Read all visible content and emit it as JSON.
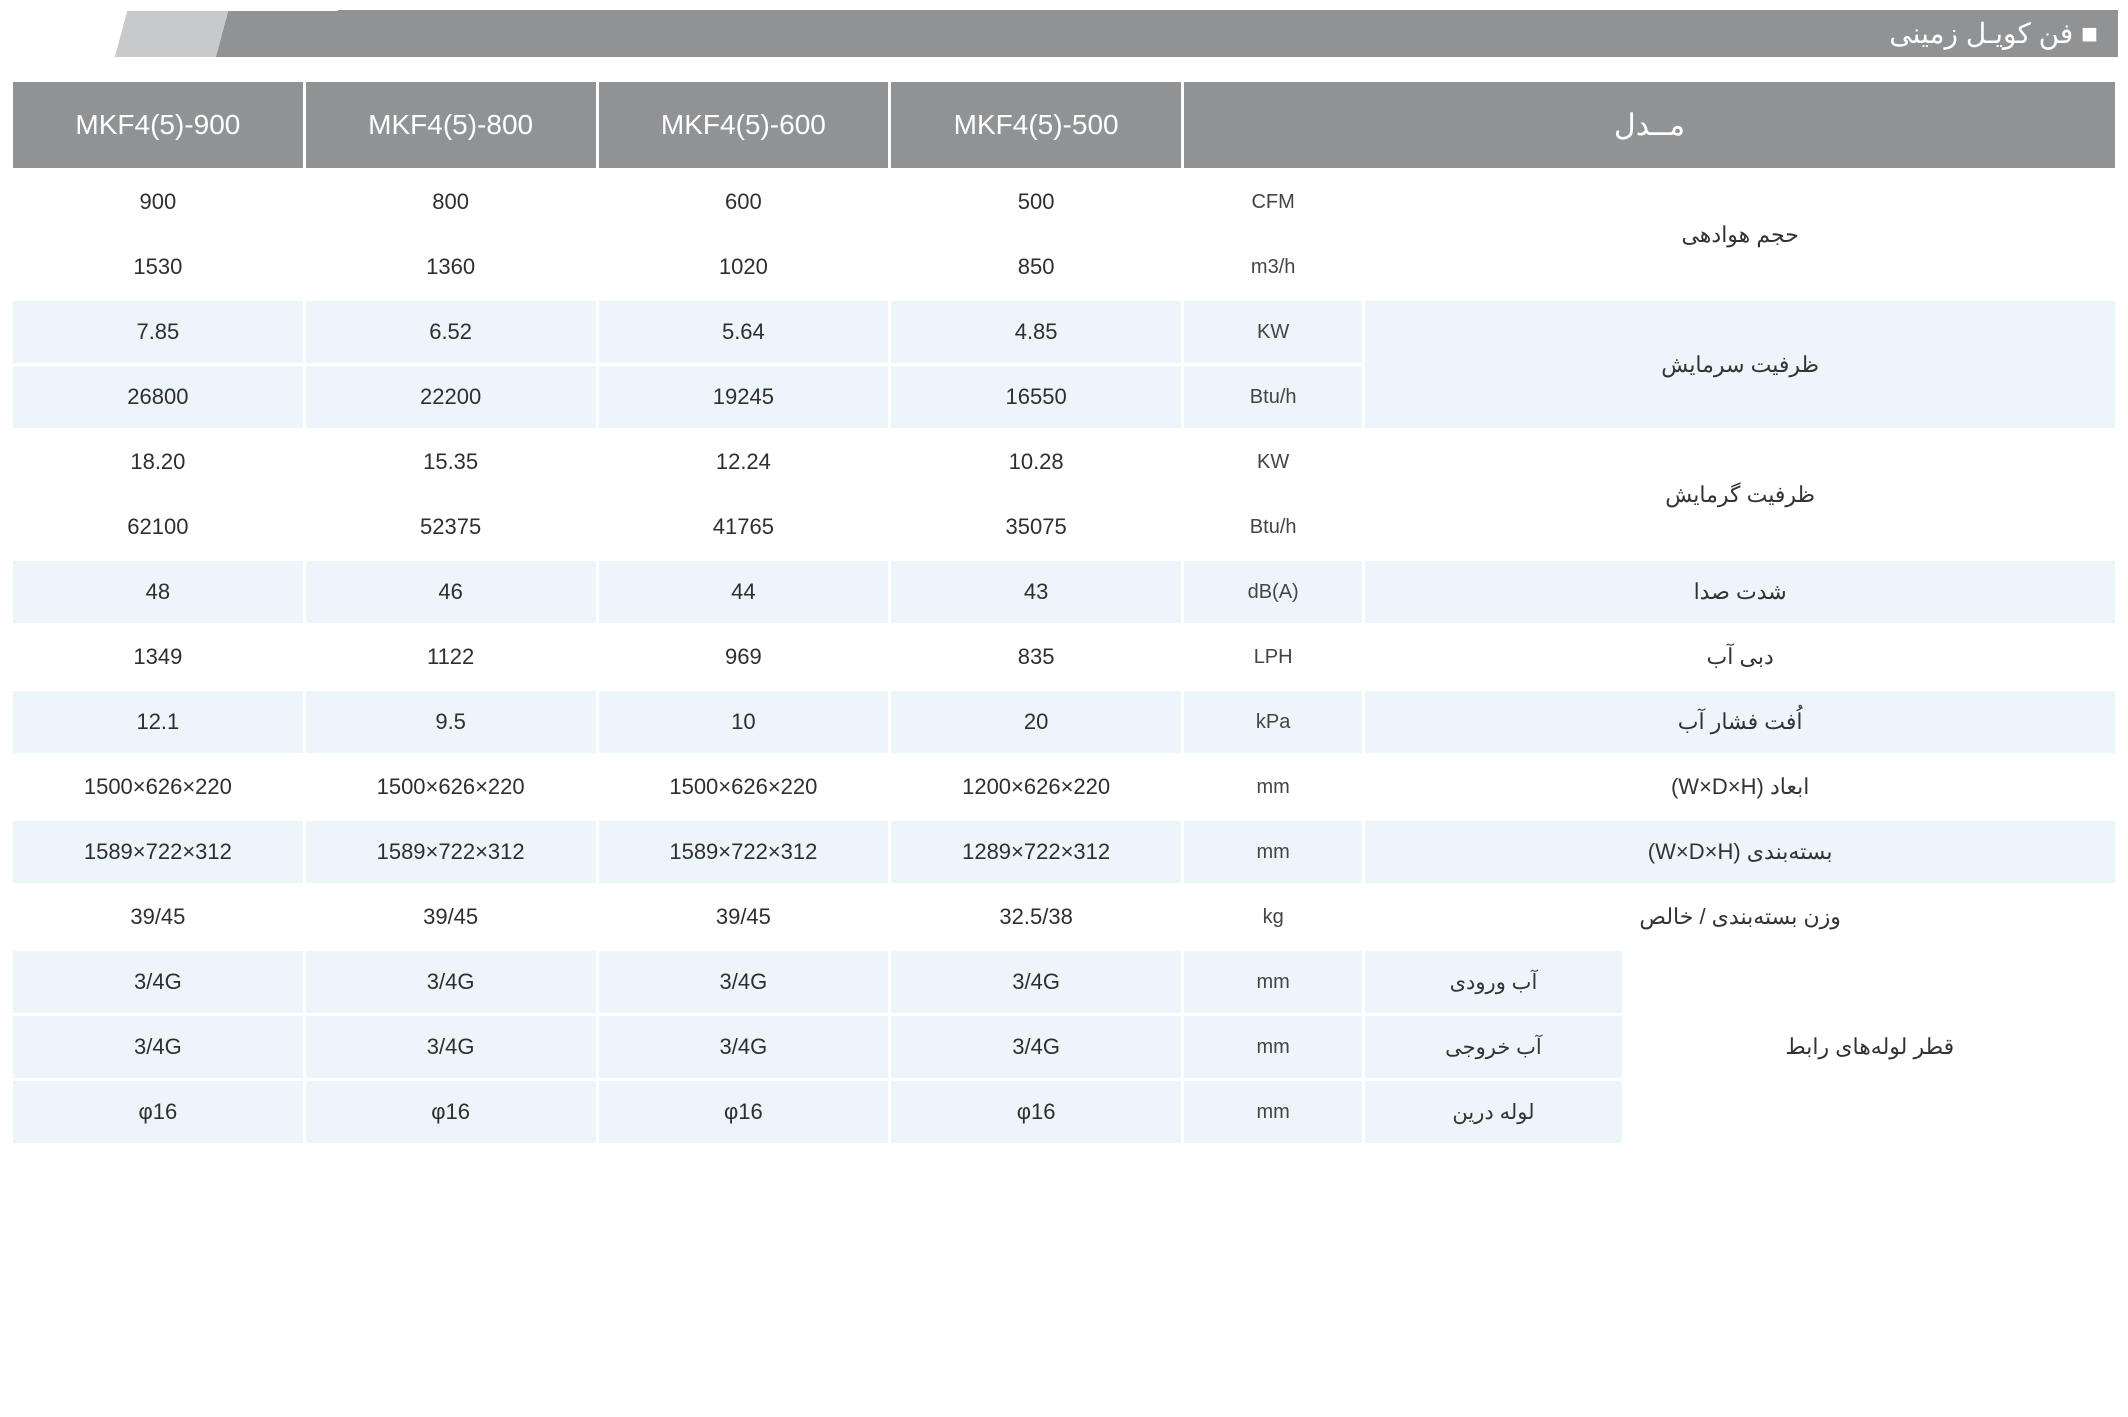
{
  "title": "فن کویـل زمینی",
  "colors": {
    "header_bg": "#909294",
    "header_fg": "#ffffff",
    "row_alt_bg": "#ecf6fa",
    "row_bg": "#ffffff",
    "text": "#2e2e2e"
  },
  "header": {
    "model_label": "مــدل",
    "models": [
      "MKF4(5)-900",
      "MKF4(5)-800",
      "MKF4(5)-600",
      "MKF4(5)-500"
    ]
  },
  "rows": [
    {
      "label": "حجم هوادهی",
      "bg": 0,
      "sub": [
        {
          "unit": "CFM",
          "v": [
            "900",
            "800",
            "600",
            "500"
          ]
        },
        {
          "unit": "m3/h",
          "v": [
            "1530",
            "1360",
            "1020",
            "850"
          ]
        }
      ]
    },
    {
      "label": "ظرفیت سرمایش",
      "bg": 1,
      "sub": [
        {
          "unit": "KW",
          "v": [
            "7.85",
            "6.52",
            "5.64",
            "4.85"
          ]
        },
        {
          "unit": "Btu/h",
          "v": [
            "26800",
            "22200",
            "19245",
            "16550"
          ]
        }
      ]
    },
    {
      "label": "ظرفیت گرمایش",
      "bg": 0,
      "sub": [
        {
          "unit": "KW",
          "v": [
            "18.20",
            "15.35",
            "12.24",
            "10.28"
          ]
        },
        {
          "unit": "Btu/h",
          "v": [
            "62100",
            "52375",
            "41765",
            "35075"
          ]
        }
      ]
    },
    {
      "label": "شدت صدا",
      "bg": 1,
      "sub": [
        {
          "unit": "dB(A)",
          "v": [
            "48",
            "46",
            "44",
            "43"
          ]
        }
      ]
    },
    {
      "label": "دبی آب",
      "bg": 0,
      "sub": [
        {
          "unit": "LPH",
          "v": [
            "1349",
            "1122",
            "969",
            "835"
          ]
        }
      ]
    },
    {
      "label": "اُفت فشار آب",
      "bg": 1,
      "sub": [
        {
          "unit": "kPa",
          "v": [
            "12.1",
            "9.5",
            "10",
            "20"
          ]
        }
      ]
    },
    {
      "label": "ابعاد (W×D×H)",
      "bg": 0,
      "sub": [
        {
          "unit": "mm",
          "v": [
            "1500×626×220",
            "1500×626×220",
            "1500×626×220",
            "1200×626×220"
          ]
        }
      ]
    },
    {
      "label": "بسته‌بندی (W×D×H)",
      "bg": 1,
      "sub": [
        {
          "unit": "mm",
          "v": [
            "1589×722×312",
            "1589×722×312",
            "1589×722×312",
            "1289×722×312"
          ]
        }
      ]
    },
    {
      "label": "وزن بسته‌بندی / خالص",
      "bg": 0,
      "sub": [
        {
          "unit": "kg",
          "v": [
            "39/45",
            "39/45",
            "39/45",
            "32.5/38"
          ]
        }
      ]
    },
    {
      "label": "قطر لوله‌های رابط",
      "bg": 1,
      "labelbg": 0,
      "sub": [
        {
          "sublabel": "آب ورودی",
          "unit": "mm",
          "v": [
            "3/4G",
            "3/4G",
            "3/4G",
            "3/4G"
          ]
        },
        {
          "sublabel": "آب خروجی",
          "unit": "mm",
          "v": [
            "3/4G",
            "3/4G",
            "3/4G",
            "3/4G"
          ]
        },
        {
          "sublabel": "لوله درین",
          "unit": "mm",
          "v": [
            "φ16",
            "φ16",
            "φ16",
            "φ16"
          ]
        }
      ]
    }
  ]
}
